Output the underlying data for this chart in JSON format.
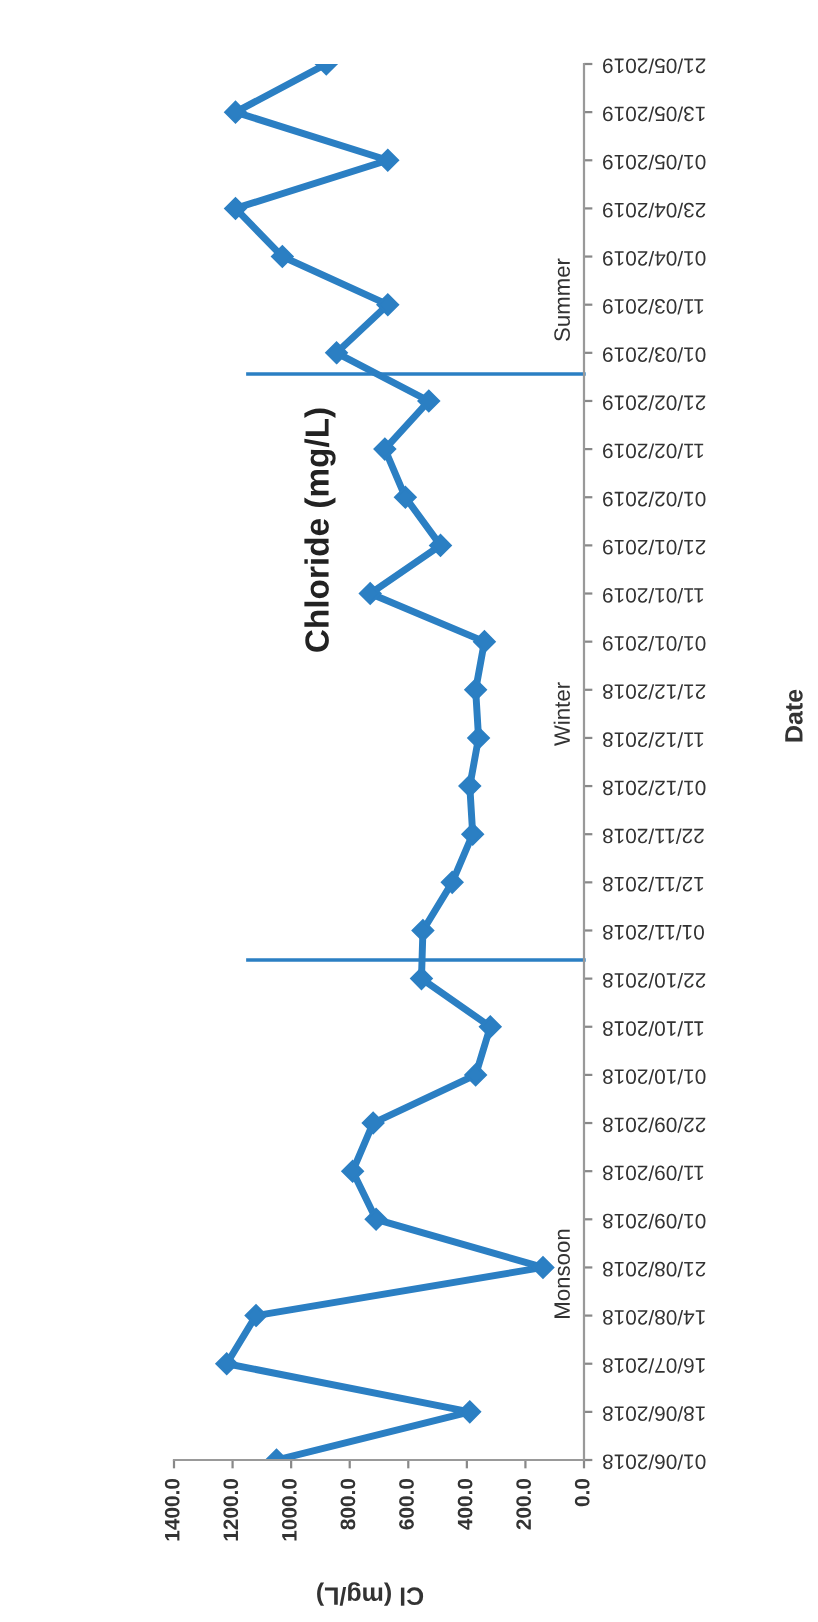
{
  "chart_data": {
    "type": "line",
    "orientation": "horizontal",
    "title": "Chloride (mg/L)",
    "xlabel": "Cl (mg/L)",
    "ylabel": "Date",
    "categories": [
      "21/05/2019",
      "13/05/2019",
      "01/05/2019",
      "23/04/2019",
      "01/04/2019",
      "11/03/2019",
      "01/03/2019",
      "21/02/2019",
      "11/02/2019",
      "01/02/2019",
      "21/01/2019",
      "11/01/2019",
      "01/01/2019",
      "21/12/2018",
      "11/12/2018",
      "01/12/2018",
      "22/11/2018",
      "12/11/2018",
      "01/11/2018",
      "22/10/2018",
      "11/10/2018",
      "01/10/2018",
      "22/09/2018",
      "11/09/2018",
      "01/09/2018",
      "21/08/2018",
      "14/08/2018",
      "16/07/2018",
      "18/06/2018",
      "01/06/2018"
    ],
    "series": [
      {
        "color": "#2b7fc3",
        "values": [
          880,
          1190,
          670,
          1190,
          1030,
          670,
          845,
          530,
          680,
          610,
          490,
          730,
          340,
          370,
          360,
          390,
          380,
          450,
          550,
          555,
          320,
          370,
          720,
          790,
          710,
          140,
          1120,
          1220,
          390,
          1050
        ]
      }
    ],
    "xlim": [
      1400,
      0
    ],
    "xticks": [
      {
        "value": 0,
        "label": "0.0"
      },
      {
        "value": 200,
        "label": "200.0"
      },
      {
        "value": 400,
        "label": "400.0"
      },
      {
        "value": 600,
        "label": "600.0"
      },
      {
        "value": 800,
        "label": "800.0"
      },
      {
        "value": 1000,
        "label": "1000.0"
      },
      {
        "value": 1200,
        "label": "1200.0"
      },
      {
        "value": 1400,
        "label": "1400.0"
      }
    ],
    "annotations": [
      "Monsoon",
      "Winter",
      "Summer"
    ],
    "marker": "diamond",
    "line_style": "solid",
    "grid": false,
    "legend": false
  }
}
